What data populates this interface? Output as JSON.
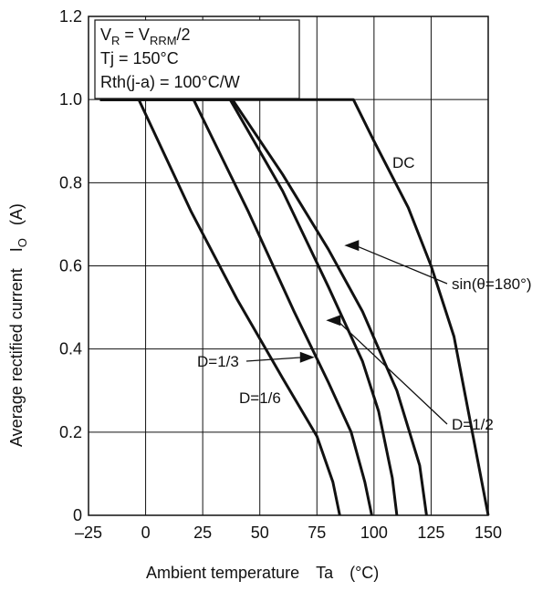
{
  "chart_data": {
    "type": "line",
    "title": "",
    "xlabel": "Ambient temperature",
    "xlabel_symbol": "Ta",
    "xlabel_unit": "(°C)",
    "ylabel": "Average rectified current",
    "ylabel_symbol": "I",
    "ylabel_symbol_sub": "O",
    "ylabel_unit": "(A)",
    "xlim": [
      -25,
      150
    ],
    "ylim": [
      0,
      1.2
    ],
    "x_ticks": [
      "–25",
      "0",
      "25",
      "50",
      "75",
      "100",
      "125",
      "150"
    ],
    "y_ticks": [
      "0",
      "0.2",
      "0.4",
      "0.6",
      "0.8",
      "1.0",
      "1.2"
    ],
    "grid": true,
    "conditions": {
      "line1_a": "V",
      "line1_a_sub": "R",
      "line1_b": " = V",
      "line1_b_sub": "RRM",
      "line1_c": "/2",
      "line2": "Tj = 150°C",
      "line3": "Rth(j-a) = 100°C/W"
    },
    "series": [
      {
        "name": "DC",
        "x": [
          -20,
          91,
          100,
          115,
          125,
          135,
          150
        ],
        "y": [
          1.0,
          1.0,
          0.9,
          0.74,
          0.6,
          0.43,
          0.0
        ]
      },
      {
        "name": "sin(θ=180°)",
        "x": [
          -20,
          38,
          60,
          80,
          95,
          110,
          120,
          123
        ],
        "y": [
          1.0,
          1.0,
          0.82,
          0.64,
          0.49,
          0.3,
          0.12,
          0.0
        ]
      },
      {
        "name": "D=1/2",
        "x": [
          -20,
          37,
          60,
          80,
          95,
          102,
          108,
          110
        ],
        "y": [
          1.0,
          1.0,
          0.78,
          0.55,
          0.37,
          0.25,
          0.09,
          0.0
        ]
      },
      {
        "name": "D=1/3",
        "x": [
          -20,
          21,
          45,
          65,
          80,
          90,
          96,
          99
        ],
        "y": [
          1.0,
          1.0,
          0.73,
          0.49,
          0.32,
          0.2,
          0.08,
          0.0
        ]
      },
      {
        "name": "D=1/6",
        "x": [
          -20,
          -3,
          20,
          40,
          60,
          75,
          82,
          85
        ],
        "y": [
          1.0,
          1.0,
          0.73,
          0.52,
          0.33,
          0.19,
          0.08,
          0.0
        ]
      }
    ],
    "annotations": [
      {
        "text": "DC",
        "target": "DC"
      },
      {
        "text": "sin(θ=180°)",
        "target": "sin(θ=180°)",
        "arrow": true,
        "point": [
          87,
          0.649
        ]
      },
      {
        "text": "D=1/2",
        "target": "D=1/2",
        "arrow": true,
        "point": [
          79,
          0.469
        ]
      },
      {
        "text": "D=1/3",
        "target": "D=1/3",
        "arrow": true,
        "point": [
          74,
          0.38
        ]
      },
      {
        "text": "D=1/6",
        "target": "D=1/6"
      }
    ]
  }
}
